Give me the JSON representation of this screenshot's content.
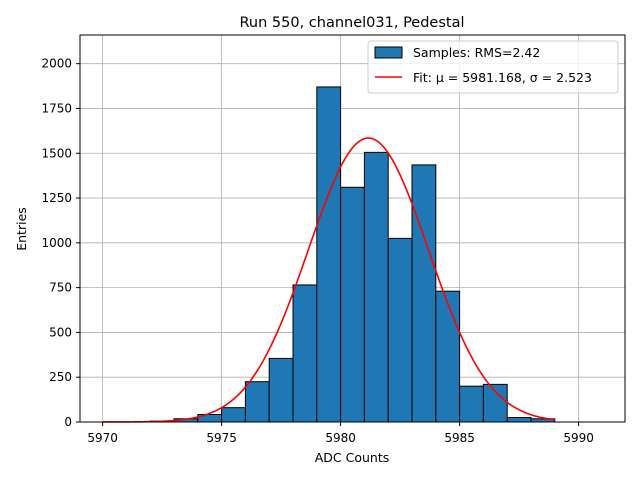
{
  "chart_data": {
    "type": "bar",
    "title": "Run 550, channel031, Pedestal",
    "xlabel": "ADC Counts",
    "ylabel": "Entries",
    "xlim": [
      5969.05,
      5991.95
    ],
    "ylim": [
      0,
      2160
    ],
    "xticks": [
      5970,
      5975,
      5980,
      5985,
      5990
    ],
    "yticks": [
      0,
      250,
      500,
      750,
      1000,
      1250,
      1500,
      1750,
      2000
    ],
    "grid": true,
    "legend_position": "top-right",
    "bin_width": 1,
    "bins": [
      {
        "x0": 5970,
        "count": 0
      },
      {
        "x0": 5971,
        "count": 0
      },
      {
        "x0": 5972,
        "count": 5
      },
      {
        "x0": 5973,
        "count": 18
      },
      {
        "x0": 5974,
        "count": 42
      },
      {
        "x0": 5975,
        "count": 80
      },
      {
        "x0": 5976,
        "count": 225
      },
      {
        "x0": 5977,
        "count": 355
      },
      {
        "x0": 5978,
        "count": 765
      },
      {
        "x0": 5979,
        "count": 1870
      },
      {
        "x0": 5980,
        "count": 1310
      },
      {
        "x0": 5981,
        "count": 1505
      },
      {
        "x0": 5982,
        "count": 1025
      },
      {
        "x0": 5983,
        "count": 1435
      },
      {
        "x0": 5984,
        "count": 730
      },
      {
        "x0": 5985,
        "count": 200
      },
      {
        "x0": 5986,
        "count": 210
      },
      {
        "x0": 5987,
        "count": 25
      },
      {
        "x0": 5988,
        "count": 18
      }
    ],
    "fit": {
      "mu": 5981.168,
      "sigma": 2.523,
      "amplitude": 1585,
      "x_range": [
        5970,
        5989
      ]
    },
    "series": [
      {
        "name": "Samples: RMS=2.42",
        "kind": "histogram",
        "color": "#1f77b4"
      },
      {
        "name": "Fit: μ = 5981.168, σ = 2.523",
        "kind": "line",
        "color": "#ff0000"
      }
    ]
  }
}
